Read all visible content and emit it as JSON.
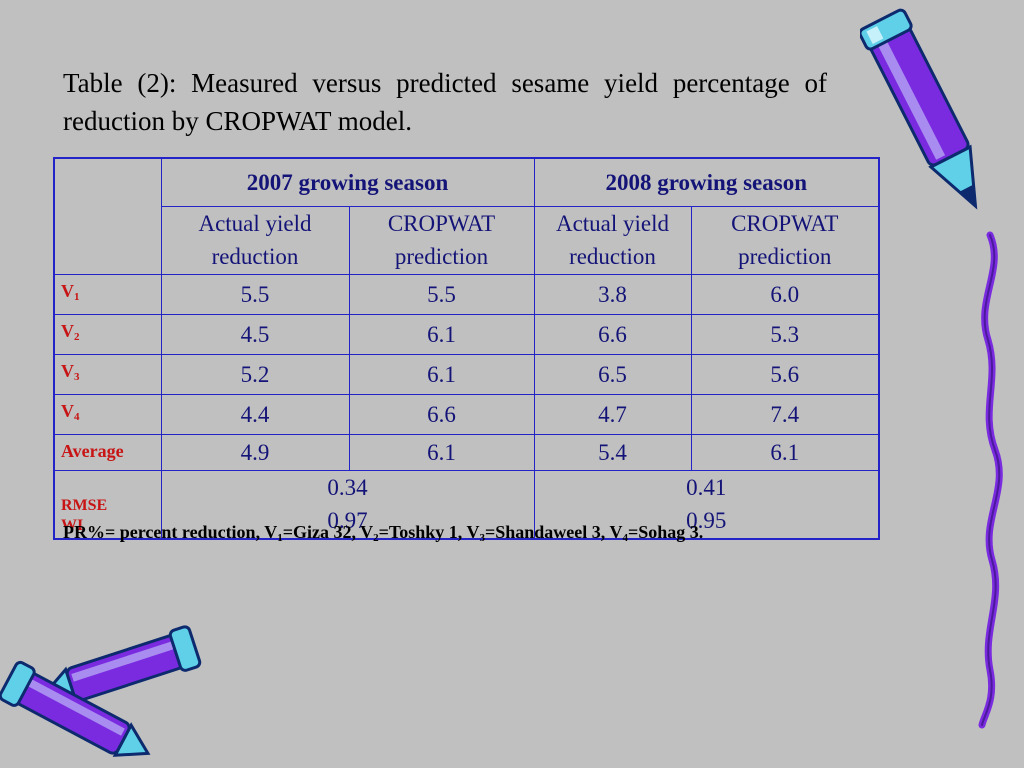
{
  "title": "Table (2): Measured versus predicted sesame yield percentage of reduction by CROPWAT model.",
  "table": {
    "seasons": [
      "2007 growing season",
      "2008 growing season"
    ],
    "subheaders": [
      {
        "line1": "Actual yield",
        "line2": "reduction"
      },
      {
        "line1": "CROPWAT",
        "line2": "prediction"
      },
      {
        "line1": "Actual yield",
        "line2": "reduction"
      },
      {
        "line1": "CROPWAT",
        "line2": "prediction"
      }
    ],
    "rows": [
      {
        "label": "V",
        "sub": "1",
        "values": [
          "5.5",
          "5.5",
          "3.8",
          "6.0"
        ]
      },
      {
        "label": "V",
        "sub": "2",
        "values": [
          "4.5",
          "6.1",
          "6.6",
          "5.3"
        ]
      },
      {
        "label": "V",
        "sub": "3",
        "values": [
          "5.2",
          "6.1",
          "6.5",
          "5.6"
        ]
      },
      {
        "label": "V",
        "sub": "4",
        "values": [
          "4.4",
          "6.6",
          "4.7",
          "7.4"
        ]
      },
      {
        "label": "Average",
        "values": [
          "4.9",
          "6.1",
          "5.4",
          "6.1"
        ]
      }
    ],
    "stats": {
      "labels": [
        "RMSE",
        "WI"
      ],
      "season_2007": [
        "0.34",
        "0.97"
      ],
      "season_2008": [
        "0.41",
        "0.95"
      ]
    }
  },
  "footnote": {
    "prefix": "PR%= percent reduction, V",
    "s1": "1",
    "t1": "=Giza 32, V",
    "s2": "2",
    "t2": "=Toshky 1, V",
    "s3": "3",
    "t3": "=Shandaweel 3, V",
    "s4": "4",
    "t4": "=Sohag 3."
  },
  "decorations": {
    "icons": [
      "pencil-icon",
      "crayon-icon"
    ],
    "colors": {
      "background": "#c0c0c0",
      "border": "#2323c8",
      "header_text": "#c81414",
      "pencil": "#7a2be0"
    }
  }
}
